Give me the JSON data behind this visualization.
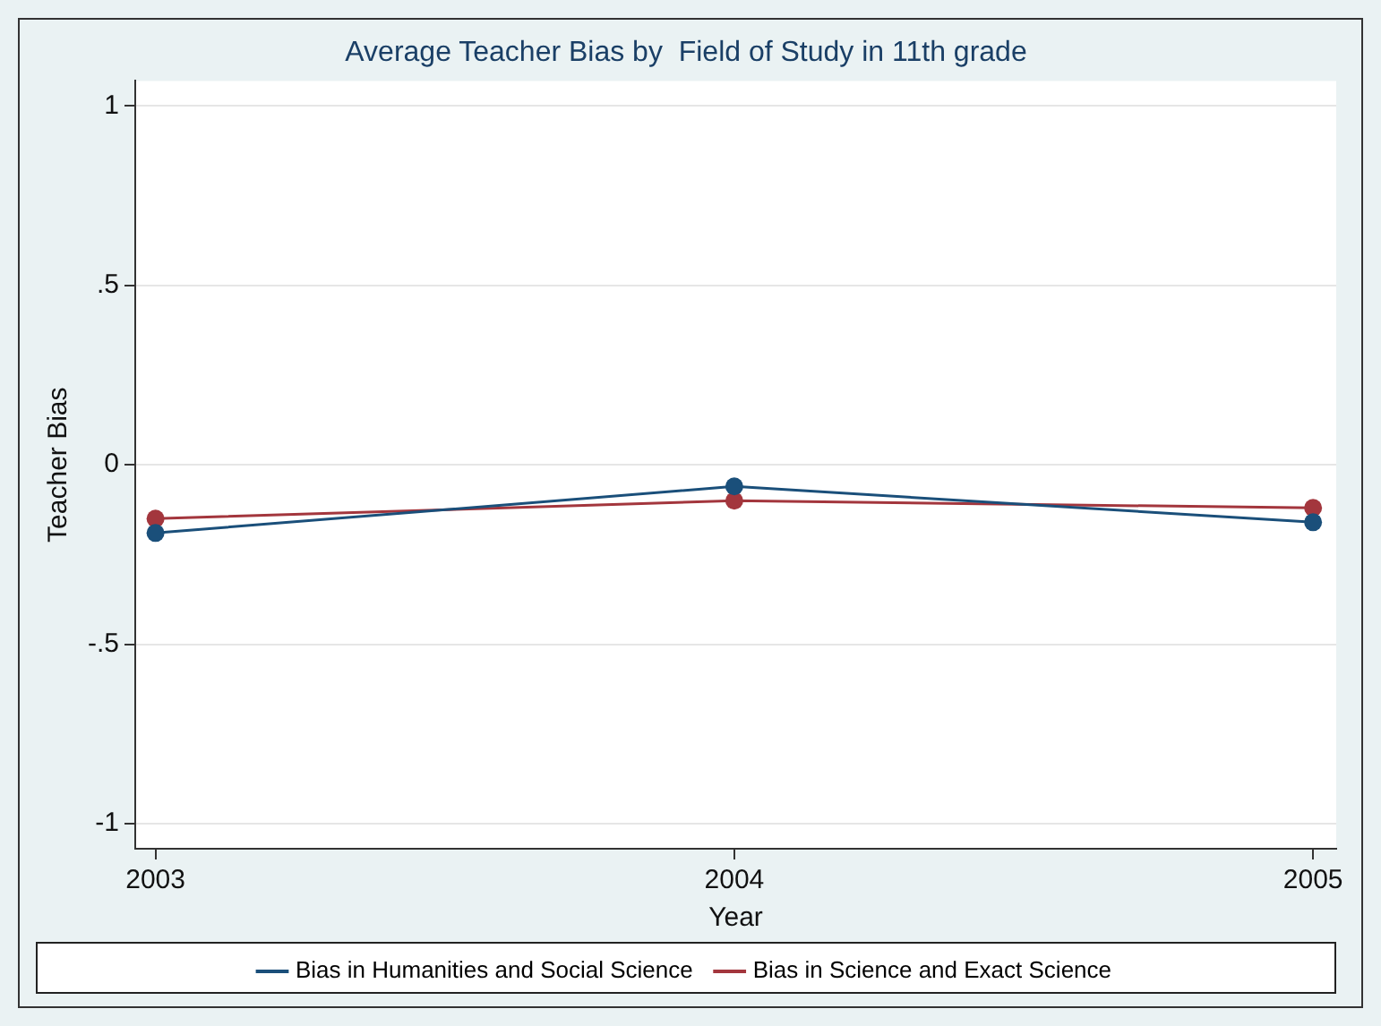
{
  "chart_data": {
    "type": "line",
    "title": "Average Teacher Bias by  Field of Study in 11th grade",
    "xlabel": "Year",
    "ylabel": "Teacher Bias",
    "x": [
      2003,
      2004,
      2005
    ],
    "series": [
      {
        "name": "Bias in Humanities and Social Science",
        "color": "#1a4f7a",
        "values": [
          -0.19,
          -0.06,
          -0.16
        ]
      },
      {
        "name": "Bias in Science and Exact Science",
        "color": "#a3363d",
        "values": [
          -0.15,
          -0.1,
          -0.12
        ]
      }
    ],
    "xlim": [
      2002.965,
      2005.04
    ],
    "xticks": [
      2003,
      2004,
      2005
    ],
    "ylim": [
      -1.07,
      1.07
    ],
    "yticks": [
      {
        "value": -1,
        "label": "-1"
      },
      {
        "value": -0.5,
        "label": "-.5"
      },
      {
        "value": 0,
        "label": "0"
      },
      {
        "value": 0.5,
        "label": ".5"
      },
      {
        "value": 1,
        "label": "1"
      }
    ],
    "grid": "y",
    "legend": "bottom",
    "marker": "circle",
    "line_style": "solid"
  }
}
